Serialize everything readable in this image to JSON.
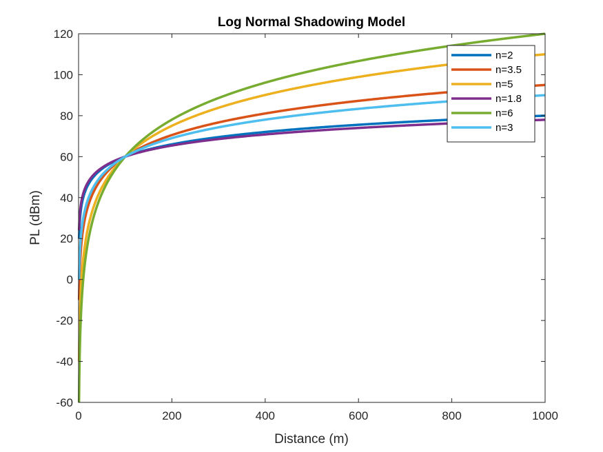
{
  "chart_data": {
    "type": "line",
    "title": "Log Normal Shadowing Model",
    "xlabel": "Distance (m)",
    "ylabel": "PL (dBm)",
    "xlim": [
      0,
      1000
    ],
    "ylim": [
      -60,
      120
    ],
    "xticks": [
      "0",
      "200",
      "400",
      "600",
      "800",
      "1000"
    ],
    "yticks": [
      "-60",
      "-40",
      "-20",
      "0",
      "20",
      "40",
      "60",
      "80",
      "100",
      "120"
    ],
    "grid": false,
    "legend_position": "top-right",
    "model": {
      "reference_distance_m": 100,
      "reference_pl_dbm": 60
    },
    "series": [
      {
        "name": "n=2",
        "n": 2,
        "color": "#0072BD",
        "values_at_x1_x1000": [
          20,
          80
        ]
      },
      {
        "name": "n=3.5",
        "n": 3.5,
        "color": "#D95319",
        "values_at_x1_x1000": [
          -10,
          95
        ]
      },
      {
        "name": "n=5",
        "n": 5,
        "color": "#EDB120",
        "values_at_x1_x1000": [
          -40,
          110
        ]
      },
      {
        "name": "n=1.8",
        "n": 1.8,
        "color": "#7E2F8E",
        "values_at_x1_x1000": [
          24,
          78
        ]
      },
      {
        "name": "n=6",
        "n": 6,
        "color": "#77AC30",
        "values_at_x1_x1000": [
          -60,
          120
        ]
      },
      {
        "name": "n=3",
        "n": 3,
        "color": "#4DBEEE",
        "values_at_x1_x1000": [
          0,
          90
        ]
      }
    ]
  }
}
